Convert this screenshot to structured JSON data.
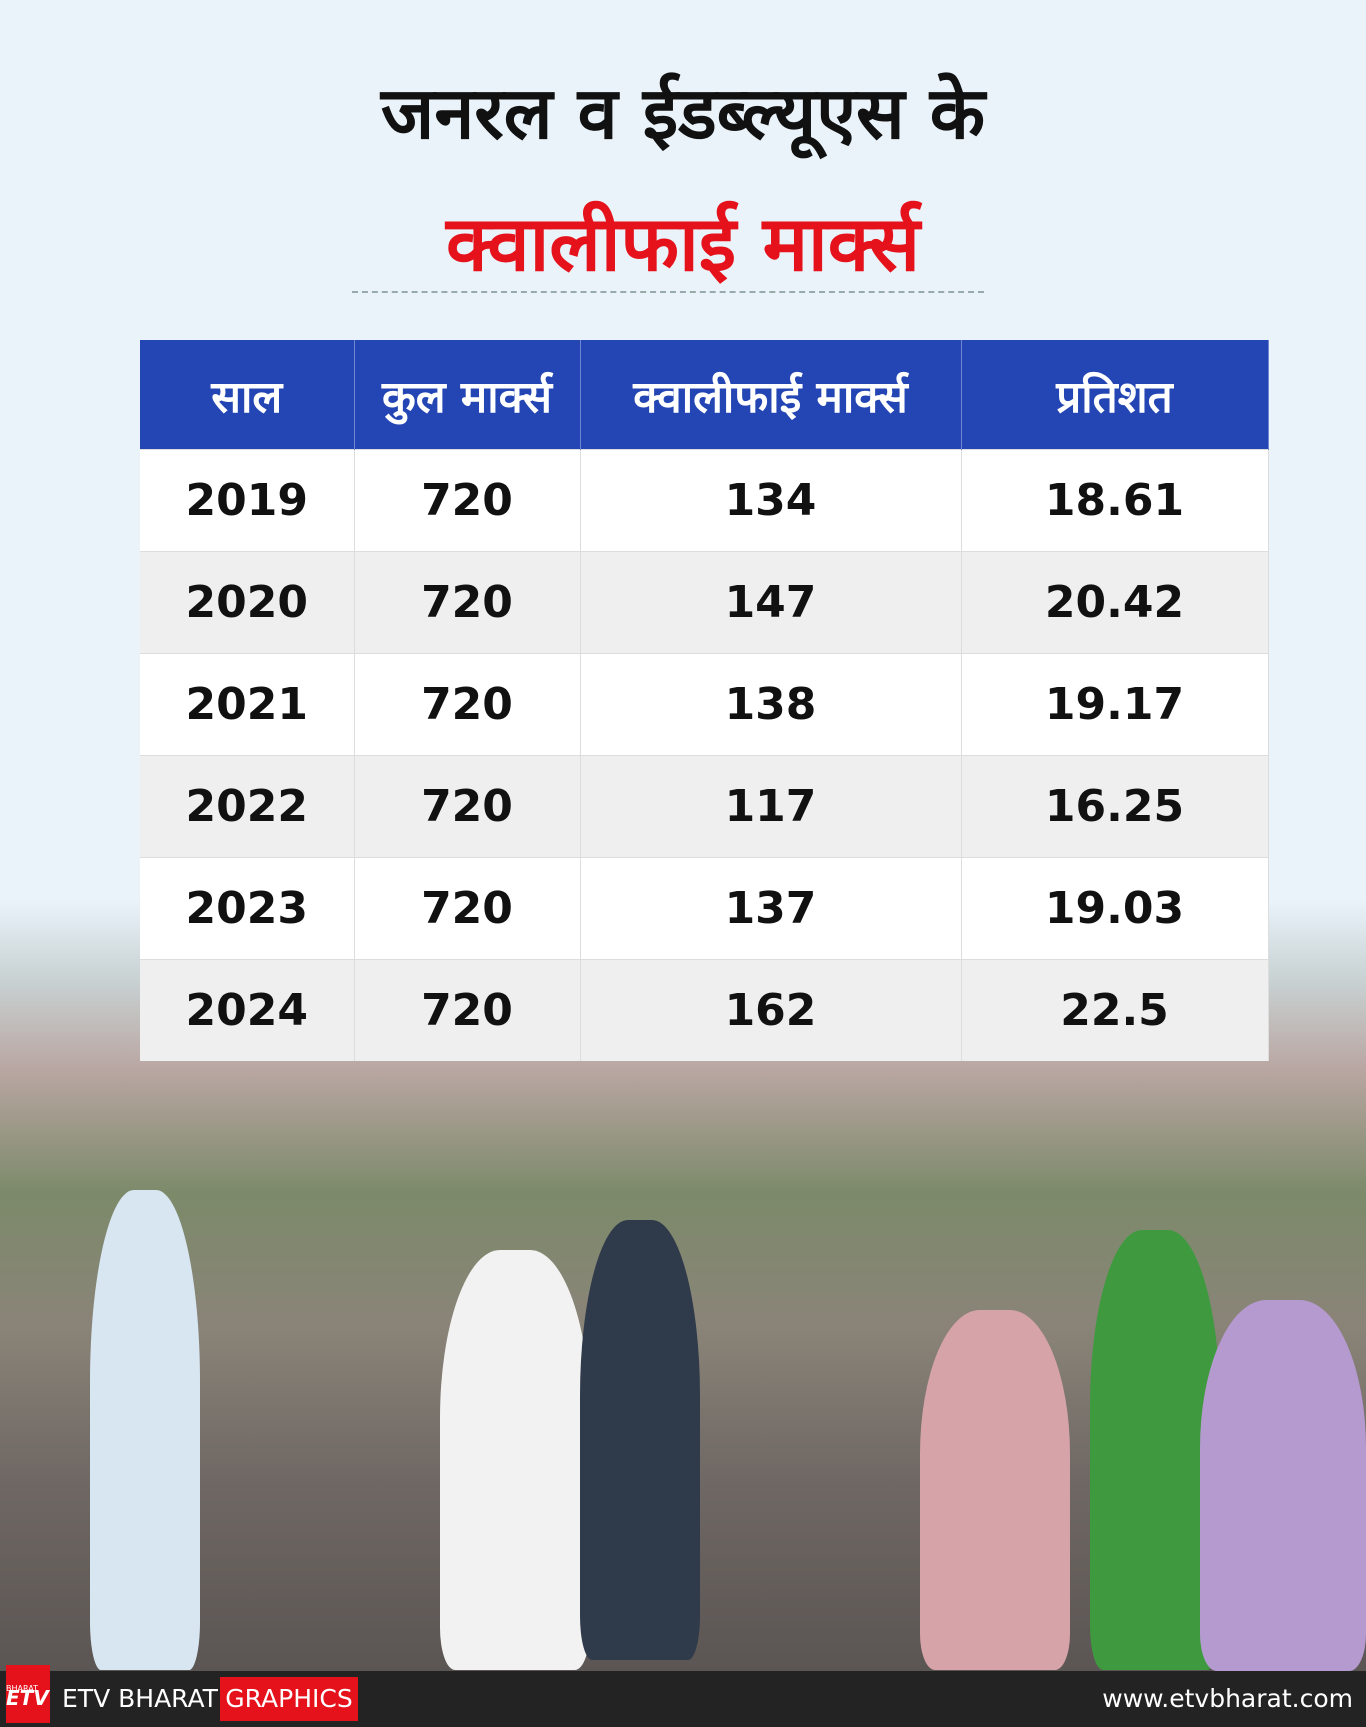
{
  "header": {
    "title_line1": "जनरल व ईडब्ल्यूएस के",
    "title_line2": "क्वालीफाई मार्क्स"
  },
  "table": {
    "columns": [
      "साल",
      "कुल मार्क्स",
      "क्वालीफाई मार्क्स",
      "प्रतिशत"
    ],
    "rows": [
      [
        "2019",
        "720",
        "134",
        "18.61"
      ],
      [
        "2020",
        "720",
        "147",
        "20.42"
      ],
      [
        "2021",
        "720",
        "138",
        "19.17"
      ],
      [
        "2022",
        "720",
        "117",
        "16.25"
      ],
      [
        "2023",
        "720",
        "137",
        "19.03"
      ],
      [
        "2024",
        "720",
        "162",
        "22.5"
      ]
    ]
  },
  "footer": {
    "logo_mark": "ETV",
    "logo_sub": "BHARAT",
    "brand": "ETV BHARAT",
    "section": "GRAPHICS",
    "url": "www.etvbharat.com"
  }
}
